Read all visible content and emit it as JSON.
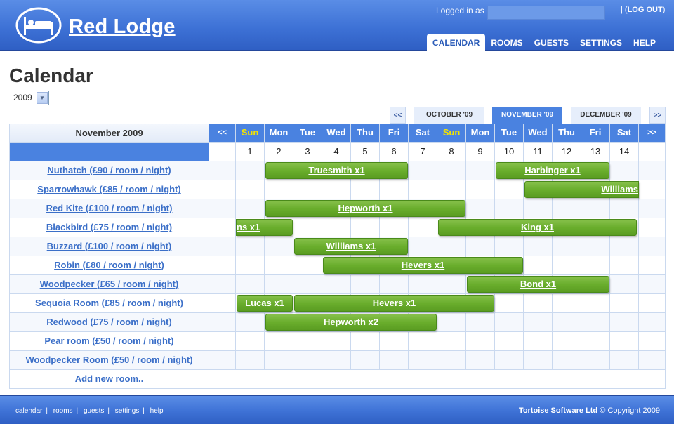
{
  "header": {
    "app_name": "Red Lodge",
    "logged_in_label": "Logged in as",
    "logout_label": "LOG OUT"
  },
  "nav": {
    "items": [
      {
        "label": "CALENDAR",
        "active": true
      },
      {
        "label": "ROOMS",
        "active": false
      },
      {
        "label": "GUESTS",
        "active": false
      },
      {
        "label": "SETTINGS",
        "active": false
      },
      {
        "label": "HELP",
        "active": false
      }
    ]
  },
  "page": {
    "title": "Calendar",
    "year": "2009"
  },
  "month_nav": {
    "prev_btn": "<<",
    "next_btn": ">>",
    "prev_month": "OCTOBER '09",
    "current_month": "NOVEMBER '09",
    "next_month": "DECEMBER '09"
  },
  "calendar": {
    "month_label": "November 2009",
    "prev_btn": "<<",
    "next_btn": ">>",
    "days": [
      {
        "name": "Sun",
        "date": "1",
        "sunday": true
      },
      {
        "name": "Mon",
        "date": "2"
      },
      {
        "name": "Tue",
        "date": "3"
      },
      {
        "name": "Wed",
        "date": "4"
      },
      {
        "name": "Thu",
        "date": "5"
      },
      {
        "name": "Fri",
        "date": "6"
      },
      {
        "name": "Sat",
        "date": "7"
      },
      {
        "name": "Sun",
        "date": "8",
        "sunday": true
      },
      {
        "name": "Mon",
        "date": "9"
      },
      {
        "name": "Tue",
        "date": "10"
      },
      {
        "name": "Wed",
        "date": "11"
      },
      {
        "name": "Thu",
        "date": "12"
      },
      {
        "name": "Fri",
        "date": "13"
      },
      {
        "name": "Sat",
        "date": "14"
      }
    ],
    "rooms": [
      "Nuthatch (£90 / room / night)",
      "Sparrowhawk (£85 / room / night)",
      "Red Kite (£100 / room / night)",
      "Blackbird (£75 / room / night)",
      "Buzzard (£100 / room / night)",
      "Robin (£80 / room / night)",
      "Woodpecker (£65 / room / night)",
      "Sequoia Room (£85 / room / night)",
      "Redwood (£75 / room / night)",
      "Pear room (£50 / room / night)",
      "Woodpecker Room (£50 / room / night)"
    ],
    "add_room_label": "Add new room..",
    "bookings": [
      {
        "room": 0,
        "label": "Truesmith x1",
        "start_day": 2,
        "end_day": 6
      },
      {
        "room": 0,
        "label": "Harbinger x1",
        "start_day": 10,
        "end_day": 13
      },
      {
        "room": 1,
        "label": "Williams",
        "start_day": 11,
        "end_day": 14,
        "continues": true
      },
      {
        "room": 2,
        "label": "Hepworth x1",
        "start_day": 2,
        "end_day": 8
      },
      {
        "room": 3,
        "label": "ns x1",
        "start_day": 1,
        "end_day": 2,
        "from_previous": true
      },
      {
        "room": 3,
        "label": "King x1",
        "start_day": 8,
        "end_day": 14
      },
      {
        "room": 4,
        "label": "Williams x1",
        "start_day": 3,
        "end_day": 6
      },
      {
        "room": 5,
        "label": "Hevers x1",
        "start_day": 4,
        "end_day": 10
      },
      {
        "room": 6,
        "label": "Bond x1",
        "start_day": 9,
        "end_day": 13
      },
      {
        "room": 7,
        "label": "Lucas x1",
        "start_day": 1,
        "end_day": 2
      },
      {
        "room": 7,
        "label": "Hevers x1",
        "start_day": 3,
        "end_day": 9
      },
      {
        "room": 8,
        "label": "Hepworth x2",
        "start_day": 2,
        "end_day": 7
      }
    ]
  },
  "footer": {
    "links": [
      "calendar",
      "rooms",
      "guests",
      "settings",
      "help"
    ],
    "company": "Tortoise Software Ltd",
    "copyright": "© Copyright 2009"
  }
}
